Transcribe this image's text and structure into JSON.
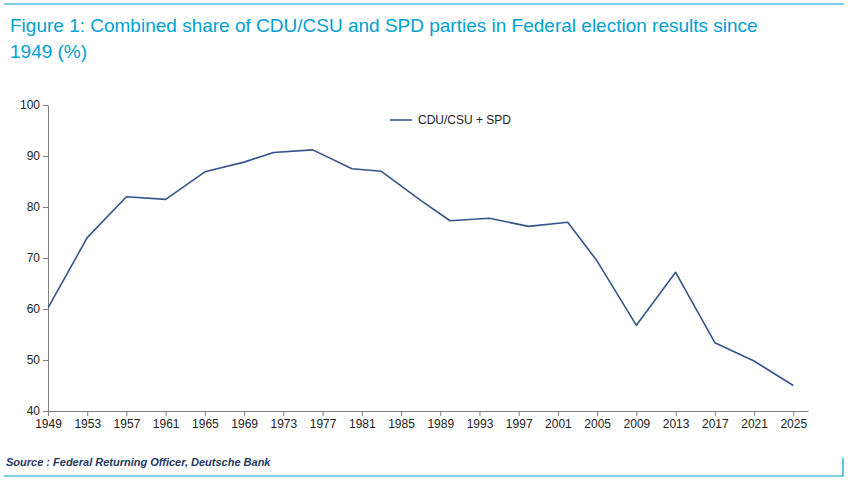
{
  "chart_data": {
    "type": "line",
    "title": "Figure 1: Combined share of CDU/CSU and SPD parties in Federal election results since 1949 (%)",
    "source": "Source : Federal Returning Officer, Deutsche Bank",
    "x": [
      1949,
      1953,
      1957,
      1961,
      1965,
      1969,
      1972,
      1976,
      1980,
      1983,
      1987,
      1990,
      1994,
      1998,
      2002,
      2005,
      2009,
      2013,
      2017,
      2021,
      2025
    ],
    "series": [
      {
        "name": "CDU/CSU + SPD",
        "color": "#34558b",
        "values": [
          60.2,
          74.0,
          82.0,
          81.5,
          86.9,
          88.8,
          90.7,
          91.2,
          87.5,
          87.0,
          81.3,
          77.3,
          77.8,
          76.2,
          77.0,
          69.4,
          56.8,
          67.2,
          53.4,
          49.8,
          45.0
        ]
      }
    ],
    "xlim": [
      1949,
      2026.5
    ],
    "xticks": [
      1949,
      1953,
      1957,
      1961,
      1965,
      1969,
      1973,
      1977,
      1981,
      1985,
      1989,
      1993,
      1997,
      2001,
      2005,
      2009,
      2013,
      2017,
      2021,
      2025
    ],
    "ylim": [
      40,
      100
    ],
    "yticks": [
      40,
      50,
      60,
      70,
      80,
      90,
      100
    ],
    "grid": false,
    "legend": "top"
  }
}
